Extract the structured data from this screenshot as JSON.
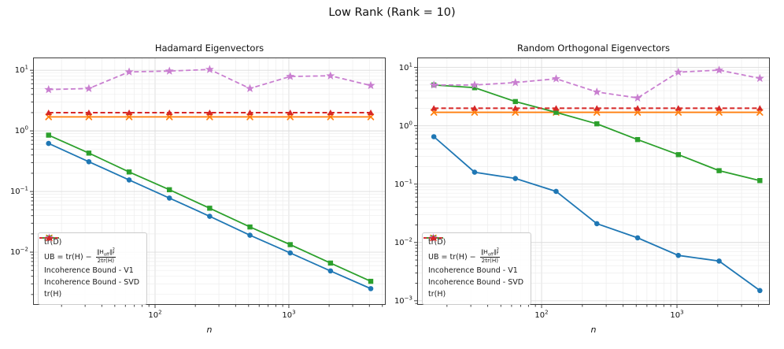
{
  "figure": {
    "suptitle": "Low Rank (Rank = 10)",
    "background": "#ffffff",
    "spine_color": "#3c3c3c",
    "grid_major_color": "#dcdcdc",
    "grid_minor_color": "#ededed"
  },
  "colors": {
    "blue": "#1f77b4",
    "orange": "#ff7f0e",
    "green": "#2ca02c",
    "purple": "#c97fd0",
    "red": "#d62728"
  },
  "legend": {
    "ub": {
      "prefix": "UB = tr(H) − ",
      "num_open": "‖H",
      "num_sub": "off",
      "num_close": "‖",
      "sup": "2",
      "sub": "F",
      "den": "2tr(H)"
    },
    "items": [
      {
        "key": "trD",
        "label": "tr(D)",
        "marker": "circle",
        "color": "#1f77b4",
        "dash": false
      },
      {
        "key": "ub",
        "label": "UB = tr(H) − ‖H_off‖²_F / 2tr(H)",
        "use_formula": true,
        "marker": "x",
        "color": "#ff7f0e",
        "dash": false
      },
      {
        "key": "v1",
        "label": "Incoherence Bound - V1",
        "marker": "square",
        "color": "#2ca02c",
        "dash": false
      },
      {
        "key": "svd",
        "label": "Incoherence Bound - SVD",
        "marker": "star",
        "color": "#c97fd0",
        "dash": true
      },
      {
        "key": "trH",
        "label": "tr(H)",
        "marker": "triangle",
        "color": "#d62728",
        "dash": true
      }
    ]
  },
  "chart_data": [
    {
      "type": "line",
      "title": "Hadamard Eigenvectors",
      "xlabel": "n",
      "xscale": "log",
      "yscale": "log",
      "grid": "major+minor",
      "legend_position": "lower left",
      "x": [
        16,
        32,
        64,
        128,
        256,
        512,
        1024,
        2048,
        4096
      ],
      "xlim_log": [
        1.088,
        3.724
      ],
      "ylim_log": [
        -2.87,
        1.21
      ],
      "xtick_exponents": [
        2,
        3
      ],
      "ytick_exponents": [
        1,
        0,
        -1,
        -2
      ],
      "series": [
        {
          "name": "tr(D)",
          "key": "trD",
          "color": "#1f77b4",
          "marker": "circle",
          "dash": false,
          "values": [
            0.62,
            0.31,
            0.155,
            0.078,
            0.039,
            0.019,
            0.0097,
            0.0049,
            0.0025
          ]
        },
        {
          "name": "UB = tr(H) - ||H_off||^2_F / 2tr(H)",
          "key": "ub",
          "color": "#ff7f0e",
          "marker": "x",
          "dash": false,
          "values": [
            1.7,
            1.7,
            1.7,
            1.7,
            1.7,
            1.7,
            1.7,
            1.7,
            1.7
          ]
        },
        {
          "name": "Incoherence Bound - V1",
          "key": "v1",
          "color": "#2ca02c",
          "marker": "square",
          "dash": false,
          "values": [
            0.85,
            0.43,
            0.21,
            0.107,
            0.053,
            0.026,
            0.0133,
            0.0066,
            0.0033
          ]
        },
        {
          "name": "Incoherence Bound - SVD",
          "key": "svd",
          "color": "#c97fd0",
          "marker": "star",
          "dash": true,
          "values": [
            4.8,
            5.0,
            9.4,
            9.7,
            10.3,
            5.0,
            7.9,
            8.1,
            5.6
          ]
        },
        {
          "name": "tr(H)",
          "key": "trH",
          "color": "#d62728",
          "marker": "triangle",
          "dash": true,
          "values": [
            2.0,
            2.0,
            2.0,
            2.0,
            2.0,
            2.0,
            2.0,
            2.0,
            2.0
          ]
        }
      ]
    },
    {
      "type": "line",
      "title": "Random Orthogonal Eigenvectors",
      "xlabel": "n",
      "xscale": "log",
      "yscale": "log",
      "grid": "major+minor",
      "legend_position": "lower left",
      "x": [
        16,
        32,
        64,
        128,
        256,
        512,
        1024,
        2048,
        4096
      ],
      "xlim_log": [
        1.081,
        3.686
      ],
      "ylim_log": [
        -3.07,
        1.17
      ],
      "xtick_exponents": [
        2,
        3
      ],
      "ytick_exponents": [
        1,
        0,
        -1,
        -2,
        -3
      ],
      "series": [
        {
          "name": "tr(D)",
          "key": "trD",
          "color": "#1f77b4",
          "marker": "circle",
          "dash": false,
          "values": [
            0.65,
            0.16,
            0.125,
            0.075,
            0.021,
            0.012,
            0.006,
            0.0048,
            0.0015
          ]
        },
        {
          "name": "UB = tr(H) - ||H_off||^2_F / 2tr(H)",
          "key": "ub",
          "color": "#ff7f0e",
          "marker": "x",
          "dash": false,
          "values": [
            1.7,
            1.7,
            1.7,
            1.7,
            1.7,
            1.7,
            1.7,
            1.7,
            1.7
          ]
        },
        {
          "name": "Incoherence Bound - V1",
          "key": "v1",
          "color": "#2ca02c",
          "marker": "square",
          "dash": false,
          "values": [
            5.0,
            4.5,
            2.6,
            1.7,
            1.08,
            0.58,
            0.32,
            0.17,
            0.115
          ]
        },
        {
          "name": "Incoherence Bound - SVD",
          "key": "svd",
          "color": "#c97fd0",
          "marker": "star",
          "dash": true,
          "values": [
            5.0,
            5.0,
            5.5,
            6.4,
            3.8,
            3.0,
            8.3,
            9.0,
            6.5
          ]
        },
        {
          "name": "tr(H)",
          "key": "trH",
          "color": "#d62728",
          "marker": "triangle",
          "dash": true,
          "values": [
            2.0,
            2.0,
            2.0,
            2.0,
            2.0,
            2.0,
            2.0,
            2.0,
            2.0
          ]
        }
      ]
    }
  ]
}
